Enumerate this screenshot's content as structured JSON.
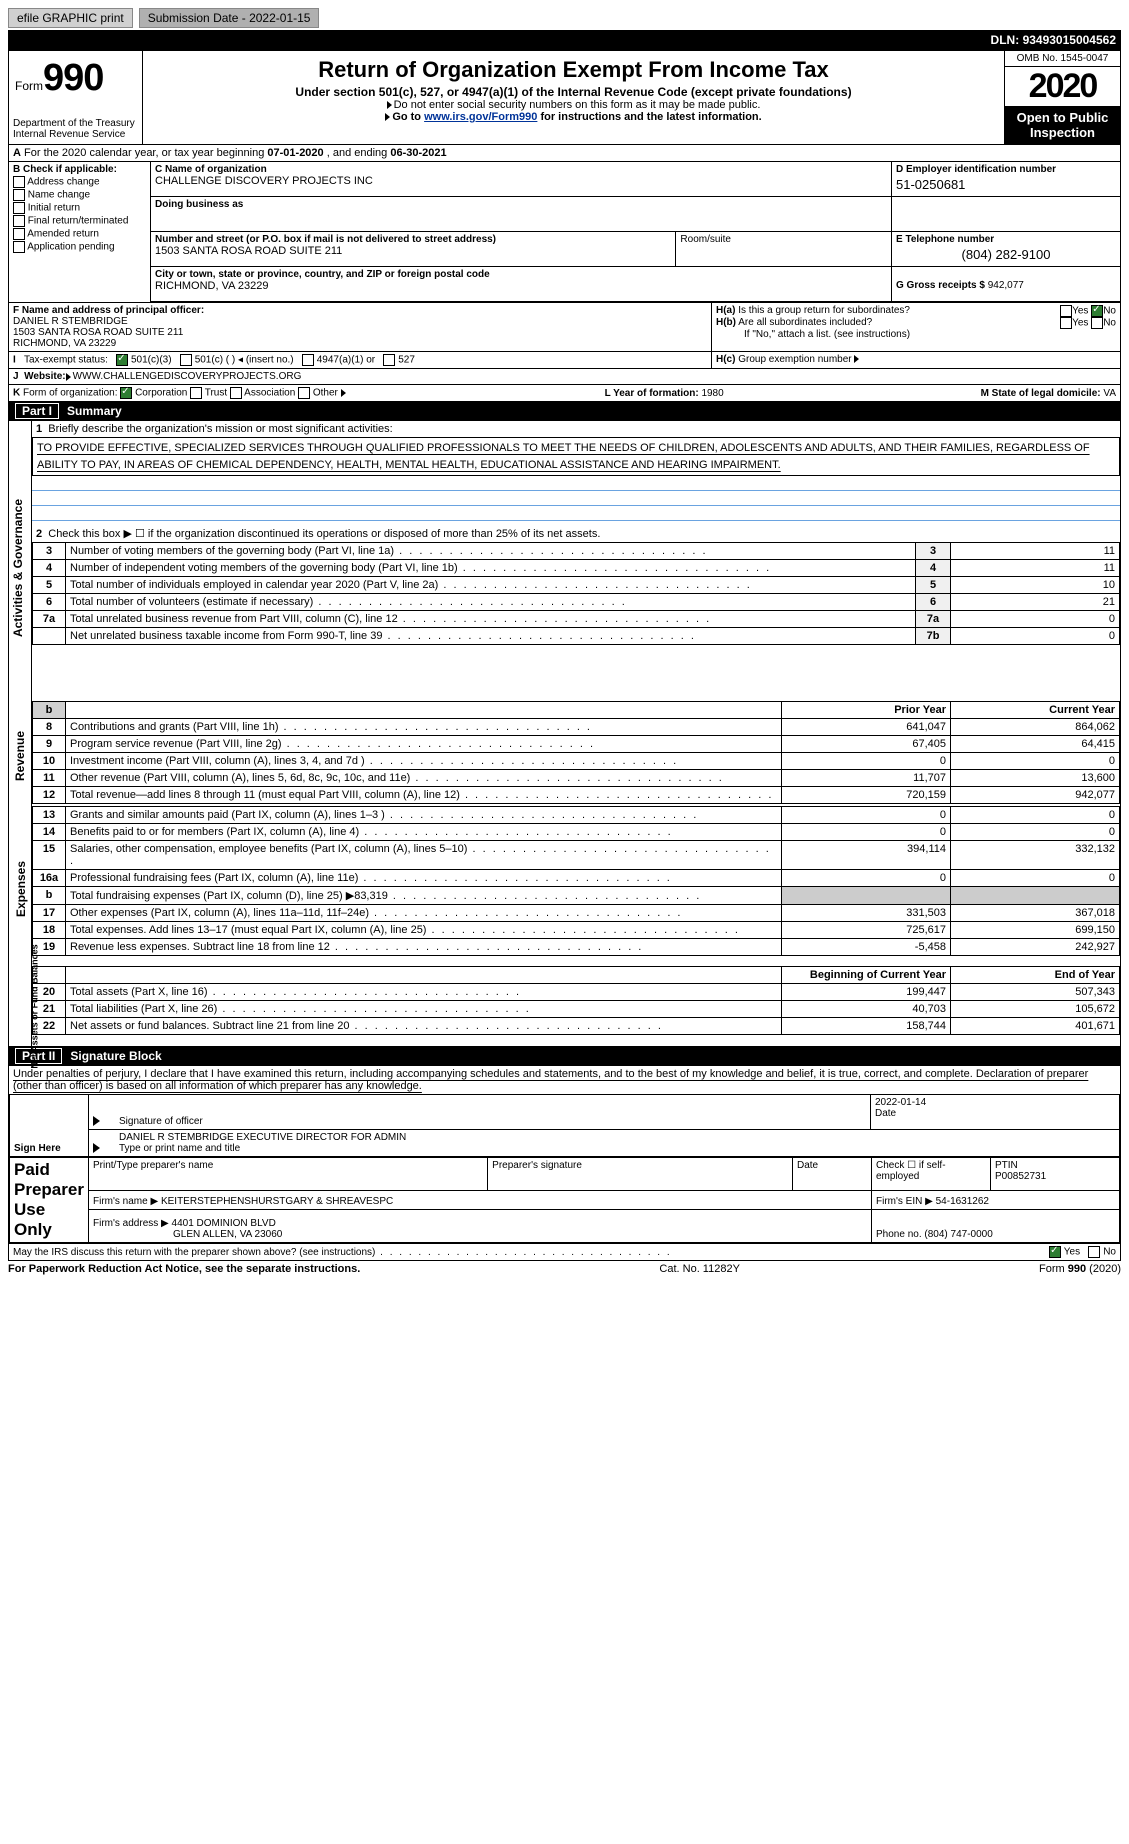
{
  "topbar": {
    "efile": "efile GRAPHIC print",
    "submission": "Submission Date - 2022-01-15",
    "dln_label": "DLN:",
    "dln": "93493015004562"
  },
  "hdr": {
    "form_word": "Form",
    "form_no": "990",
    "title": "Return of Organization Exempt From Income Tax",
    "subtitle": "Under section 501(c), 527, or 4947(a)(1) of the Internal Revenue Code (except private foundations)",
    "note1": "Do not enter social security numbers on this form as it may be made public.",
    "note2_pre": "Go to ",
    "note2_link": "www.irs.gov/Form990",
    "note2_post": " for instructions and the latest information.",
    "omb": "OMB No. 1545-0047",
    "year": "2020",
    "otp": "Open to Public Inspection",
    "dept": "Department of the Treasury\nInternal Revenue Service"
  },
  "periodA": {
    "label": "For the 2020 calendar year, or tax year beginning ",
    "begin": "07-01-2020",
    "mid": " , and ending ",
    "end": "06-30-2021"
  },
  "secB": {
    "head": "B Check if applicable:",
    "items": [
      "Address change",
      "Name change",
      "Initial return",
      "Final return/terminated",
      "Amended return",
      "Application pending"
    ]
  },
  "secC": {
    "name_label": "C Name of organization",
    "name": "CHALLENGE DISCOVERY PROJECTS INC",
    "dba_label": "Doing business as",
    "dba": "",
    "addr_label": "Number and street (or P.O. box if mail is not delivered to street address)",
    "addr": "1503 SANTA ROSA ROAD SUITE 211",
    "room_label": "Room/suite",
    "city_label": "City or town, state or province, country, and ZIP or foreign postal code",
    "city": "RICHMOND, VA  23229"
  },
  "secD": {
    "label": "D Employer identification number",
    "val": "51-0250681"
  },
  "secE": {
    "label": "E Telephone number",
    "val": "(804) 282-9100"
  },
  "secG": {
    "label": "G Gross receipts $",
    "val": "942,077"
  },
  "secF": {
    "label": "F Name and address of principal officer:",
    "name": "DANIEL R STEMBRIDGE",
    "addr1": "1503 SANTA ROSA ROAD SUITE 211",
    "addr2": "RICHMOND, VA  23229"
  },
  "secH": {
    "a": "Is this a group return for subordinates?",
    "b": "Are all subordinates included?",
    "b2": "If \"No,\" attach a list. (see instructions)",
    "c": "Group exemption number",
    "yes": "Yes",
    "no": "No"
  },
  "secI": {
    "label": "Tax-exempt status:",
    "o1": "501(c)(3)",
    "o2": "501(c) (  ) ◂ (insert no.)",
    "o3": "4947(a)(1) or",
    "o4": "527"
  },
  "secJ": {
    "label": "Website:",
    "val": "WWW.CHALLENGEDISCOVERYPROJECTS.ORG"
  },
  "secK": {
    "label": "Form of organization:",
    "o1": "Corporation",
    "o2": "Trust",
    "o3": "Association",
    "o4": "Other"
  },
  "secL": {
    "label": "L Year of formation:",
    "val": "1980"
  },
  "secM": {
    "label": "M State of legal domicile:",
    "val": "VA"
  },
  "part1": {
    "num": "Part I",
    "title": "Summary",
    "l1": "Briefly describe the organization's mission or most significant activities:",
    "mission": "TO PROVIDE EFFECTIVE, SPECIALIZED SERVICES THROUGH QUALIFIED PROFESSIONALS TO MEET THE NEEDS OF CHILDREN, ADOLESCENTS AND ADULTS, AND THEIR FAMILIES, REGARDLESS OF ABILITY TO PAY, IN AREAS OF CHEMICAL DEPENDENCY, HEALTH, MENTAL HEALTH, EDUCATIONAL ASSISTANCE AND HEARING IMPAIRMENT.",
    "l2": "Check this box ▶ ☐ if the organization discontinued its operations or disposed of more than 25% of its net assets.",
    "rows_gov": [
      {
        "n": "3",
        "t": "Number of voting members of the governing body (Part VI, line 1a)",
        "box": "3",
        "v": "11"
      },
      {
        "n": "4",
        "t": "Number of independent voting members of the governing body (Part VI, line 1b)",
        "box": "4",
        "v": "11"
      },
      {
        "n": "5",
        "t": "Total number of individuals employed in calendar year 2020 (Part V, line 2a)",
        "box": "5",
        "v": "10"
      },
      {
        "n": "6",
        "t": "Total number of volunteers (estimate if necessary)",
        "box": "6",
        "v": "21"
      },
      {
        "n": "7a",
        "t": "Total unrelated business revenue from Part VIII, column (C), line 12",
        "box": "7a",
        "v": "0"
      },
      {
        "n": "",
        "t": "Net unrelated business taxable income from Form 990-T, line 39",
        "box": "7b",
        "v": "0"
      }
    ],
    "hdr_prior": "Prior Year",
    "hdr_curr": "Current Year",
    "rev": [
      {
        "n": "8",
        "t": "Contributions and grants (Part VIII, line 1h)",
        "p": "641,047",
        "c": "864,062"
      },
      {
        "n": "9",
        "t": "Program service revenue (Part VIII, line 2g)",
        "p": "67,405",
        "c": "64,415"
      },
      {
        "n": "10",
        "t": "Investment income (Part VIII, column (A), lines 3, 4, and 7d )",
        "p": "0",
        "c": "0"
      },
      {
        "n": "11",
        "t": "Other revenue (Part VIII, column (A), lines 5, 6d, 8c, 9c, 10c, and 11e)",
        "p": "11,707",
        "c": "13,600"
      },
      {
        "n": "12",
        "t": "Total revenue—add lines 8 through 11 (must equal Part VIII, column (A), line 12)",
        "p": "720,159",
        "c": "942,077"
      }
    ],
    "exp": [
      {
        "n": "13",
        "t": "Grants and similar amounts paid (Part IX, column (A), lines 1–3 )",
        "p": "0",
        "c": "0"
      },
      {
        "n": "14",
        "t": "Benefits paid to or for members (Part IX, column (A), line 4)",
        "p": "0",
        "c": "0"
      },
      {
        "n": "15",
        "t": "Salaries, other compensation, employee benefits (Part IX, column (A), lines 5–10)",
        "p": "394,114",
        "c": "332,132"
      },
      {
        "n": "16a",
        "t": "Professional fundraising fees (Part IX, column (A), line 11e)",
        "p": "0",
        "c": "0"
      },
      {
        "n": "b",
        "t": "Total fundraising expenses (Part IX, column (D), line 25) ▶83,319",
        "p": "",
        "c": ""
      },
      {
        "n": "17",
        "t": "Other expenses (Part IX, column (A), lines 11a–11d, 11f–24e)",
        "p": "331,503",
        "c": "367,018"
      },
      {
        "n": "18",
        "t": "Total expenses. Add lines 13–17 (must equal Part IX, column (A), line 25)",
        "p": "725,617",
        "c": "699,150"
      },
      {
        "n": "19",
        "t": "Revenue less expenses. Subtract line 18 from line 12",
        "p": "-5,458",
        "c": "242,927"
      }
    ],
    "hdr_boy": "Beginning of Current Year",
    "hdr_eoy": "End of Year",
    "net": [
      {
        "n": "20",
        "t": "Total assets (Part X, line 16)",
        "p": "199,447",
        "c": "507,343"
      },
      {
        "n": "21",
        "t": "Total liabilities (Part X, line 26)",
        "p": "40,703",
        "c": "105,672"
      },
      {
        "n": "22",
        "t": "Net assets or fund balances. Subtract line 21 from line 20",
        "p": "158,744",
        "c": "401,671"
      }
    ],
    "side_gov": "Activities & Governance",
    "side_rev": "Revenue",
    "side_exp": "Expenses",
    "side_net": "Net Assets or Fund Balances"
  },
  "part2": {
    "num": "Part II",
    "title": "Signature Block",
    "penalties": "Under penalties of perjury, I declare that I have examined this return, including accompanying schedules and statements, and to the best of my knowledge and belief, it is true, correct, and complete. Declaration of preparer (other than officer) is based on all information of which preparer has any knowledge.",
    "sign_here": "Sign Here",
    "sig_officer": "Signature of officer",
    "sig_date": "Date",
    "sig_date_val": "2022-01-14",
    "type_name": "DANIEL R STEMBRIDGE  EXECUTIVE DIRECTOR FOR ADMIN",
    "type_label": "Type or print name and title",
    "paid": "Paid Preparer Use Only",
    "prep_name_label": "Print/Type preparer's name",
    "prep_sig_label": "Preparer's signature",
    "date_label": "Date",
    "self_emp": "Check ☐ if self-employed",
    "ptin_label": "PTIN",
    "ptin": "P00852731",
    "firm_name_label": "Firm's name ▶",
    "firm_name": "KEITERSTEPHENSHURSTGARY & SHREAVESPC",
    "firm_ein_label": "Firm's EIN ▶",
    "firm_ein": "54-1631262",
    "firm_addr_label": "Firm's address ▶",
    "firm_addr1": "4401 DOMINION BLVD",
    "firm_addr2": "GLEN ALLEN, VA  23060",
    "phone_label": "Phone no.",
    "phone": "(804) 747-0000",
    "irs_discuss": "May the IRS discuss this return with the preparer shown above? (see instructions)"
  },
  "footer": {
    "pra": "For Paperwork Reduction Act Notice, see the separate instructions.",
    "cat": "Cat. No. 11282Y",
    "form": "Form 990 (2020)"
  }
}
